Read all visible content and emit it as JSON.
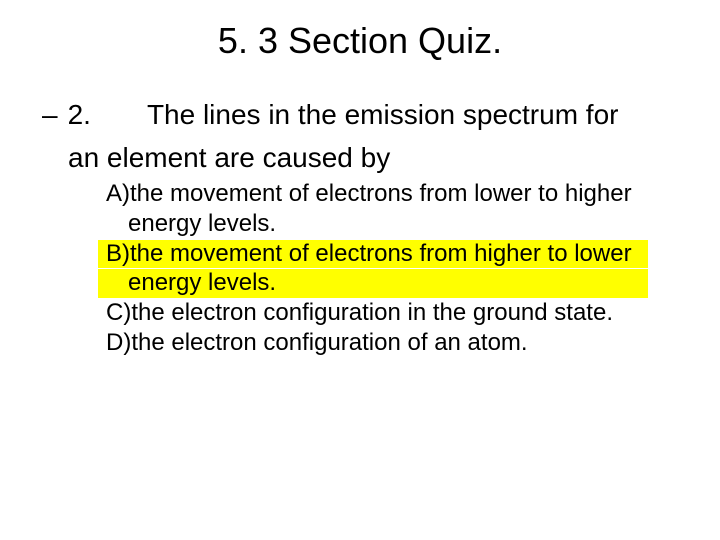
{
  "slide": {
    "title": "5. 3 Section Quiz.",
    "question": {
      "number": "2.",
      "dash": "–",
      "line1": "The lines in the emission spectrum for",
      "line2": "an element are caused by"
    },
    "options": {
      "a": {
        "label": "A) ",
        "line1": "the movement of electrons from lower to higher",
        "line2": "energy levels."
      },
      "b": {
        "label": "B) ",
        "line1": "the movement of electrons from higher to lower",
        "line2": "energy levels."
      },
      "c": {
        "label": "C) ",
        "line1": "the electron configuration in the ground state."
      },
      "d": {
        "label": "D) ",
        "line1": "the electron configuration of an atom."
      }
    },
    "highlight_color": "#ffff00",
    "background_color": "#ffffff",
    "text_color": "#000000"
  }
}
